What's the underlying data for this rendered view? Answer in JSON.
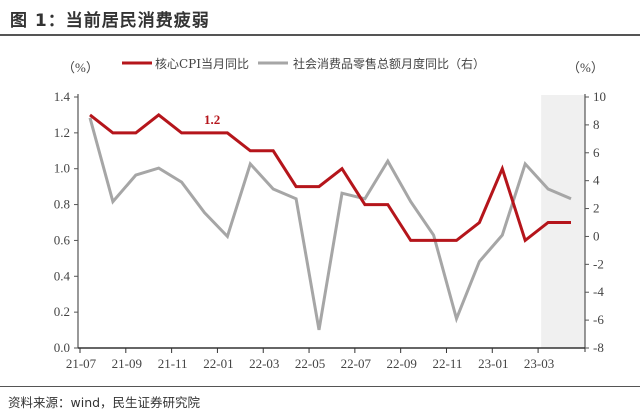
{
  "figure": {
    "title": "图 1：当前居民消费疲弱",
    "source": "资料来源：wind，民生证券研究院"
  },
  "axes": {
    "left_unit": "（%）",
    "right_unit": "（%）"
  },
  "legend": {
    "series_0": "核心CPI当月同比",
    "series_1": "社会消费品零售总额月度同比（右）"
  },
  "annotation": {
    "label": "1.2",
    "color": "#b5151b"
  },
  "colors": {
    "cpi": "#b5151b",
    "retail": "#a6a6a6",
    "shade": "#f0f0f0",
    "axis": "#555555"
  },
  "chart_data": {
    "type": "line",
    "title": "当前居民消费疲弱",
    "x": [
      "21-07",
      "21-08",
      "21-09",
      "21-10",
      "21-11",
      "21-12",
      "22-01",
      "22-02",
      "22-03",
      "22-04",
      "22-05",
      "22-06",
      "22-07",
      "22-08",
      "22-09",
      "22-10",
      "22-11",
      "22-12",
      "23-01",
      "23-02",
      "23-03",
      "23-04"
    ],
    "x_tick_labels": [
      "21-07",
      "21-09",
      "21-11",
      "22-01",
      "22-03",
      "22-05",
      "22-07",
      "22-09",
      "22-11",
      "23-01",
      "23-03"
    ],
    "series": [
      {
        "name": "核心CPI当月同比",
        "axis": "left",
        "color": "#b5151b",
        "values": [
          1.3,
          1.2,
          1.2,
          1.3,
          1.2,
          1.2,
          1.2,
          1.1,
          1.1,
          0.9,
          0.9,
          1.0,
          0.8,
          0.8,
          0.6,
          0.6,
          0.6,
          0.7,
          1.0,
          0.6,
          0.7,
          0.7
        ]
      },
      {
        "name": "社会消费品零售总额月度同比（右）",
        "axis": "right",
        "color": "#a6a6a6",
        "values": [
          8.5,
          2.5,
          4.4,
          4.9,
          3.9,
          1.7,
          0.0,
          5.2,
          3.4,
          2.7,
          -6.7,
          3.1,
          2.7,
          5.4,
          2.5,
          0.1,
          -5.9,
          -1.8,
          0.1,
          5.2,
          3.4,
          2.7
        ]
      }
    ],
    "left_axis": {
      "label": "（%）",
      "ylim": [
        0.0,
        1.4
      ],
      "ticks": [
        "0.0",
        "0.2",
        "0.4",
        "0.6",
        "0.8",
        "1.0",
        "1.2",
        "1.4"
      ]
    },
    "right_axis": {
      "label": "（%）",
      "ylim": [
        -8,
        10
      ],
      "ticks": [
        "-8",
        "-6",
        "-4",
        "-2",
        "0",
        "2",
        "4",
        "6",
        "8",
        "10"
      ]
    },
    "annotations": [
      {
        "text": "1.2",
        "x": "21-12",
        "series": "核心CPI当月同比"
      }
    ],
    "shaded_region": [
      "23-03",
      "23-04"
    ],
    "legend_position": "top",
    "grid": false,
    "source": "资料来源：wind，民生证券研究院"
  }
}
